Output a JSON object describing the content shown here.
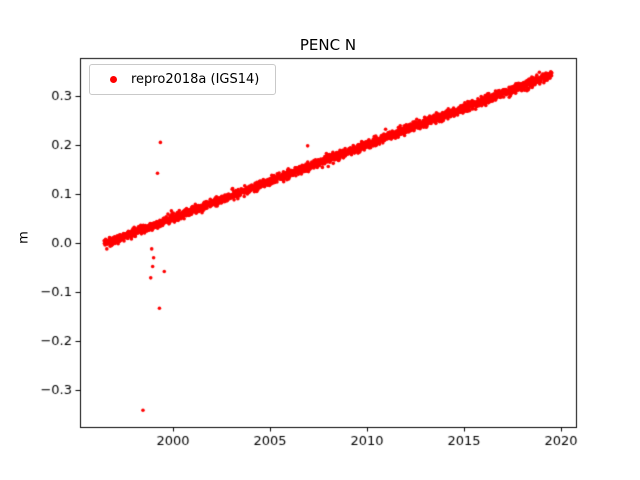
{
  "chart_data": {
    "type": "scatter",
    "title": "PENC N",
    "xlabel": "",
    "ylabel": "m",
    "xlim": [
      1995.2,
      2020.8
    ],
    "ylim": [
      -0.375,
      0.377
    ],
    "grid": false,
    "xticks": {
      "values": [
        2000,
        2005,
        2010,
        2015,
        2020
      ],
      "labels": [
        "2000",
        "2005",
        "2010",
        "2015",
        "2020"
      ]
    },
    "yticks": {
      "values": [
        -0.3,
        -0.2,
        -0.1,
        0.0,
        0.1,
        0.2,
        0.3
      ],
      "labels": [
        "−0.3",
        "−0.2",
        "−0.1",
        "0.0",
        "0.1",
        "0.2",
        "0.3"
      ]
    },
    "legend": {
      "label": "repro2018a (IGS14)",
      "position": "upper-left",
      "marker_color": "#ff0000"
    },
    "series": [
      {
        "name": "repro2018a (IGS14)",
        "color": "#ff0000",
        "marker": "dot",
        "marker_radius_px": 1.8,
        "trend": {
          "x_start": 1996.45,
          "x_end": 2019.55,
          "y_start": -0.002,
          "y_end": 0.343,
          "points": 2600,
          "noise_sd": 0.0045
        },
        "outliers": [
          [
            1998.45,
            -0.341
          ],
          [
            1999.35,
            0.205
          ],
          [
            1999.2,
            0.142
          ],
          [
            2006.95,
            0.198
          ],
          [
            1999.3,
            -0.133
          ],
          [
            1998.85,
            -0.071
          ],
          [
            1998.95,
            -0.048
          ],
          [
            1999.0,
            -0.03
          ],
          [
            1999.55,
            -0.058
          ],
          [
            1998.9,
            -0.012
          ]
        ]
      }
    ]
  }
}
